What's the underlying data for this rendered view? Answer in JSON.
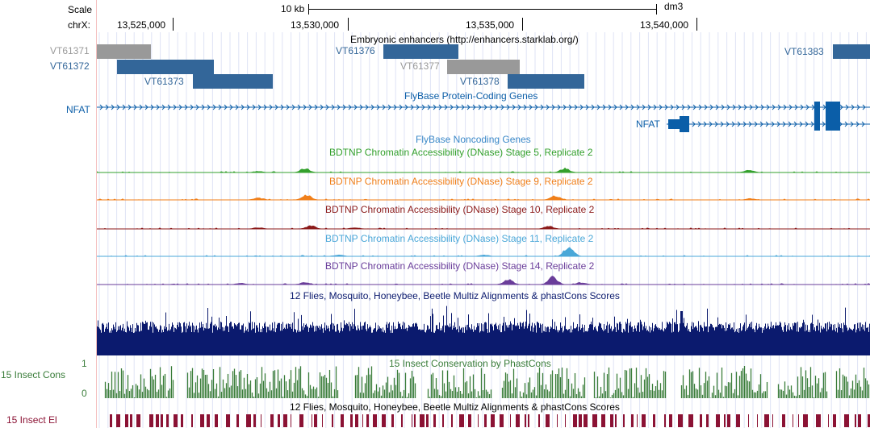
{
  "ruler": {
    "scale_label": "Scale",
    "chrom_label": "chrX:",
    "scale_bar_text": "10 kb",
    "assembly": "dm3",
    "ticks": [
      "13,525,000",
      "13,530,000",
      "13,535,000",
      "13,540,000"
    ]
  },
  "colors": {
    "vista_blue": "#336699",
    "vista_gray": "#999999",
    "gene_blue": "#0b5ea8",
    "nc_blue": "#3a88c8",
    "stage5": "#33a02c",
    "stage9": "#f07f1a",
    "stage10": "#8b1a1a",
    "stage11": "#4aa7d8",
    "stage14": "#6a3d9a",
    "multiz": "#0b1a6e",
    "cons": "#3a7d3a",
    "elements": "#8b1234"
  },
  "enhancers": {
    "title": "Embryonic enhancers (http://enhancers.starklab.org/)",
    "items": [
      {
        "label": "VT61371",
        "color": "gray"
      },
      {
        "label": "VT61372",
        "color": "blue"
      },
      {
        "label": "VT61373",
        "color": "blue"
      },
      {
        "label": "VT61376",
        "color": "blue"
      },
      {
        "label": "VT61377",
        "color": "gray"
      },
      {
        "label": "VT61378",
        "color": "blue"
      },
      {
        "label": "VT61383",
        "color": "blue"
      }
    ]
  },
  "genes": {
    "title": "FlyBase Protein-Coding Genes",
    "gene1": "NFAT",
    "gene2": "NFAT"
  },
  "noncoding": {
    "title": "FlyBase Noncoding Genes"
  },
  "dnase": [
    {
      "title": "BDTNP Chromatin Accessibility (DNase) Stage 5, Replicate 2",
      "color": "#33a02c"
    },
    {
      "title": "BDTNP Chromatin Accessibility (DNase) Stage 9, Replicate 2",
      "color": "#f07f1a"
    },
    {
      "title": "BDTNP Chromatin Accessibility (DNase) Stage 10, Replicate 2",
      "color": "#8b1a1a"
    },
    {
      "title": "BDTNP Chromatin Accessibility (DNase) Stage 11, Replicate 2",
      "color": "#4aa7d8"
    },
    {
      "title": "BDTNP Chromatin Accessibility (DNase) Stage 14, Replicate 2",
      "color": "#6a3d9a"
    }
  ],
  "multiz": {
    "title": "12 Flies, Mosquito, Honeybee, Beetle Multiz Alignments & phastCons Scores"
  },
  "conservation": {
    "title": "15 Insect Conservation by PhastCons",
    "left_label": "15 Insect Cons",
    "axis_max": "1",
    "axis_min": "0"
  },
  "elements": {
    "title": "12 Flies, Mosquito, Honeybee, Beetle Multiz Alignments & phastCons Scores",
    "left_label": "15 Insect El"
  }
}
